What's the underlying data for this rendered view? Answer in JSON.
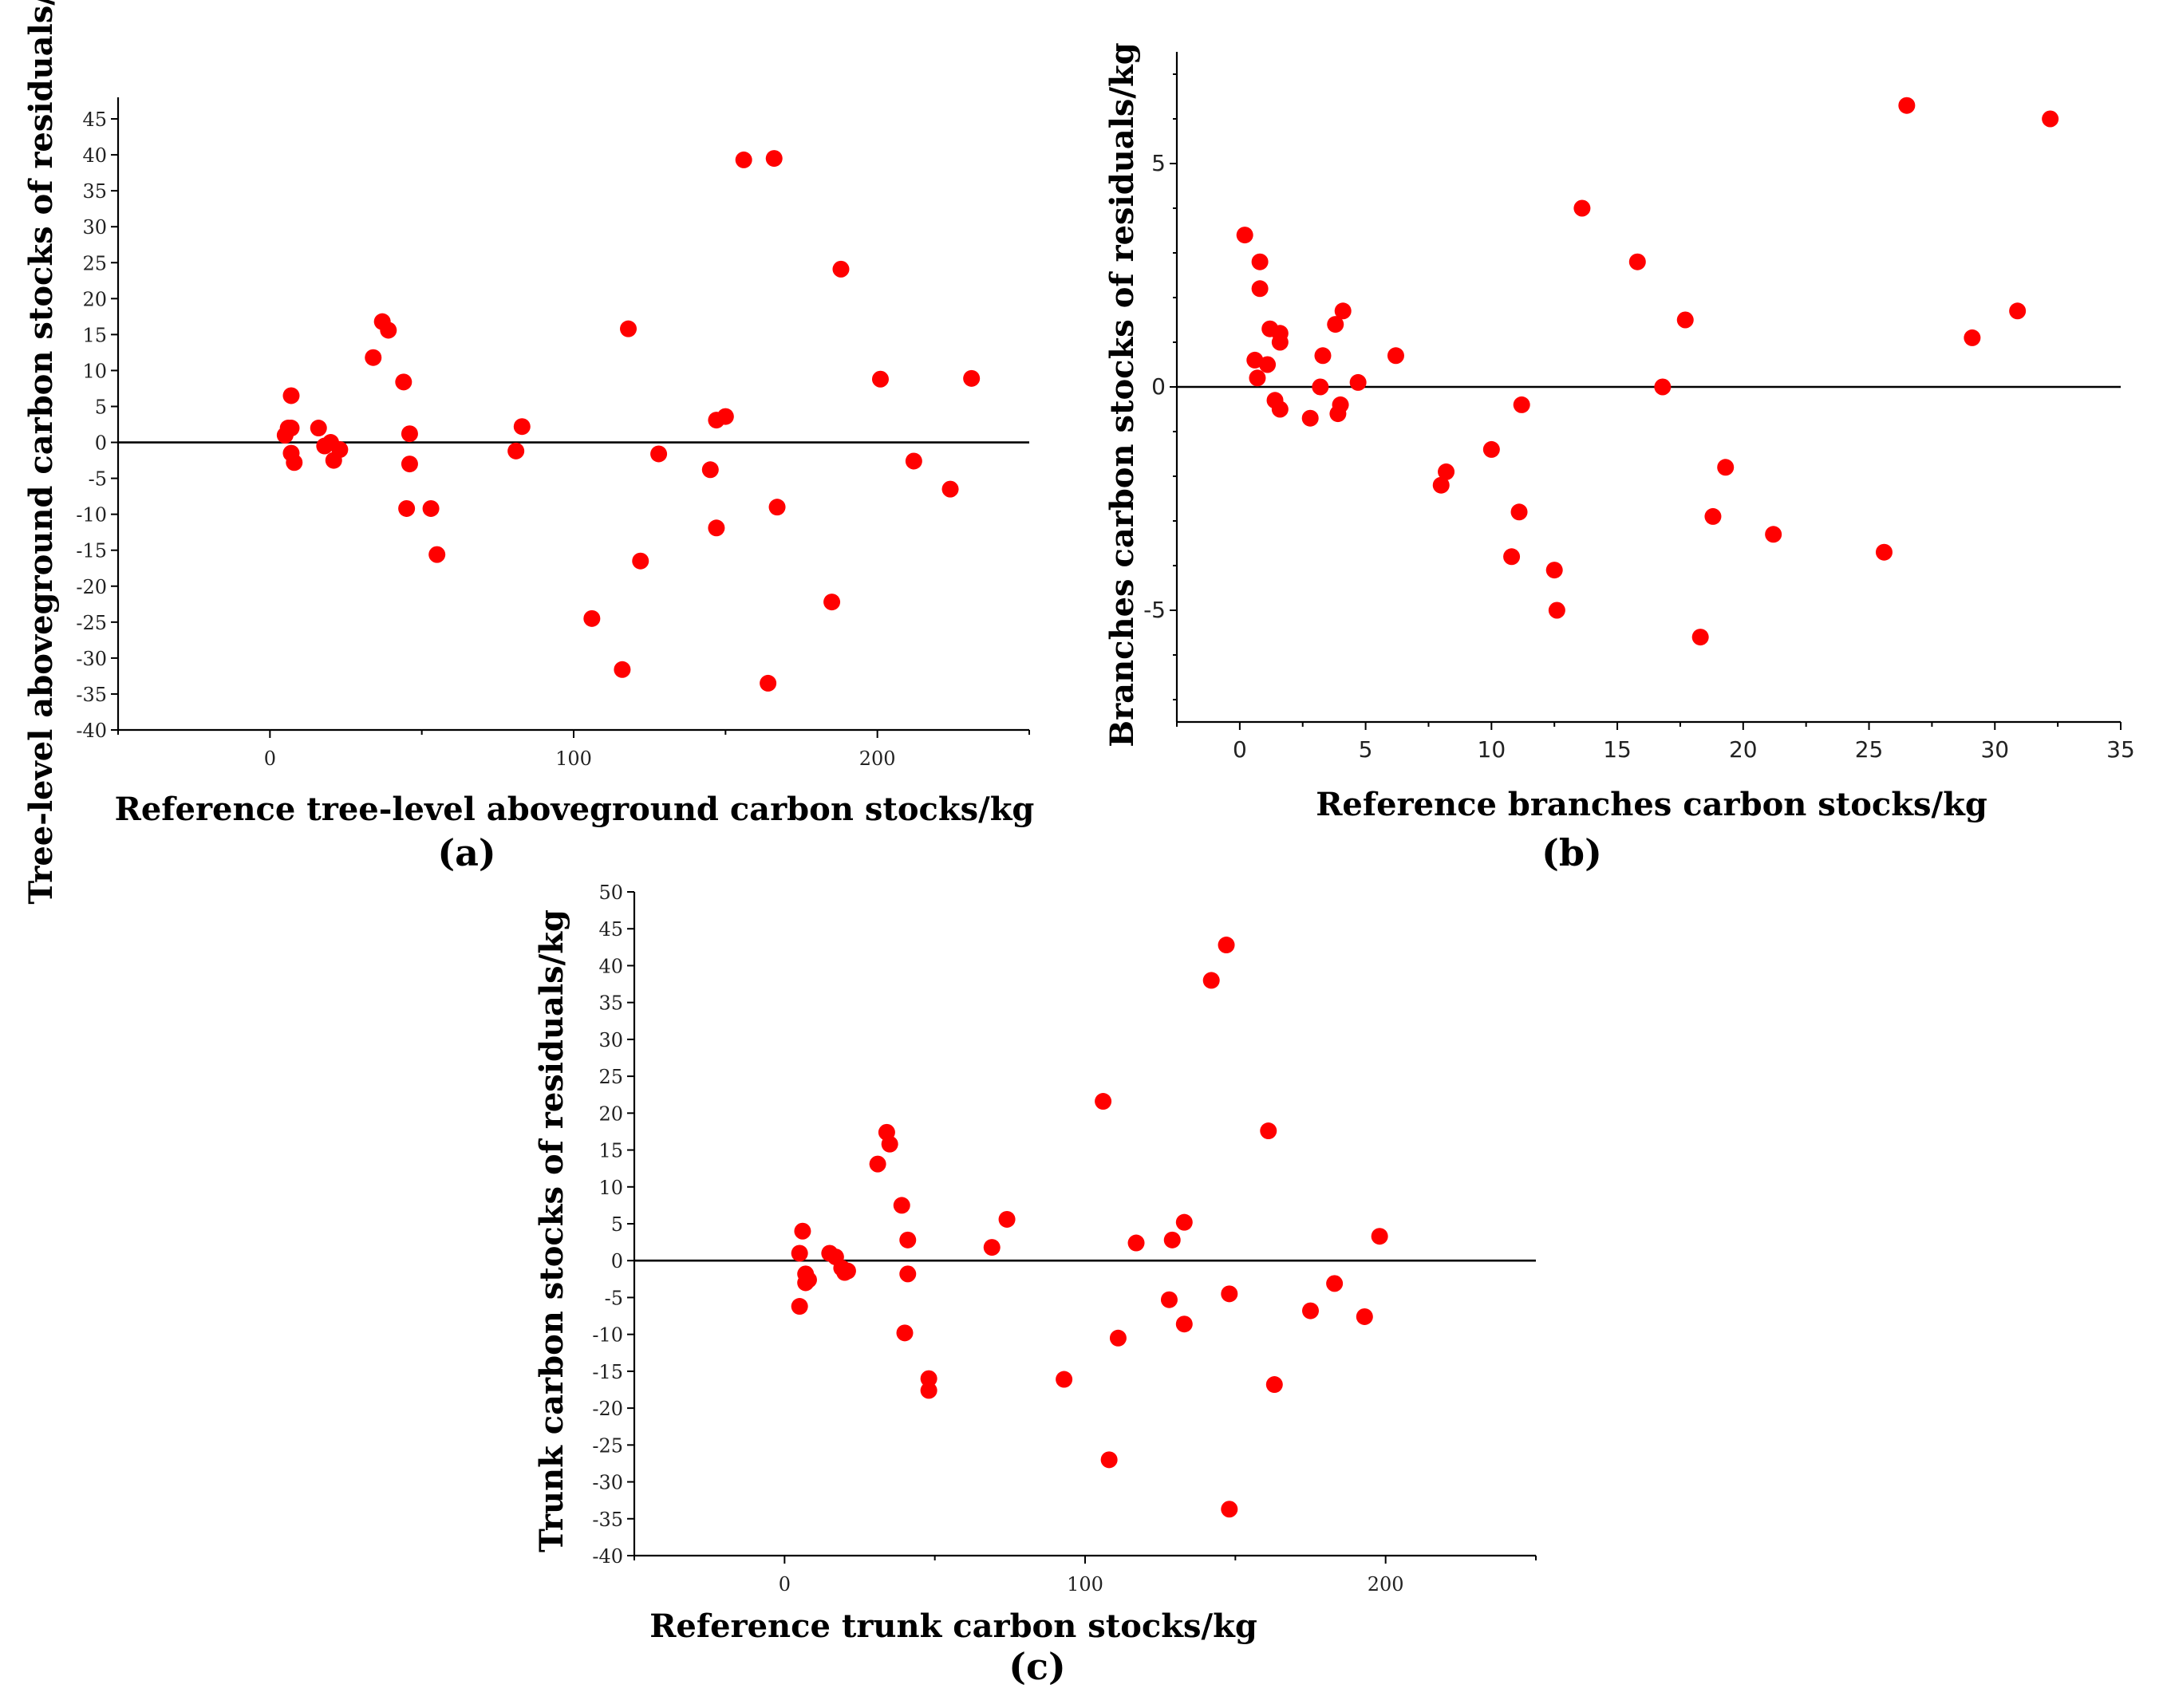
{
  "chart_data": [
    {
      "type": "scatter",
      "panel_label": "(a)",
      "xlabel": "Reference tree-level aboveground carbon stocks/kg",
      "ylabel": "Tree-level aboveground carbon stocks of residuals/kg",
      "xlim": [
        -50,
        250
      ],
      "ylim": [
        -40,
        48
      ],
      "xticks": [
        0,
        100,
        200
      ],
      "yticks": [
        -40,
        -35,
        -30,
        -25,
        -20,
        -15,
        -10,
        -5,
        0,
        5,
        10,
        15,
        20,
        25,
        30,
        35,
        40,
        45
      ],
      "reference_line_y": 0,
      "points": [
        [
          5,
          1
        ],
        [
          6,
          2
        ],
        [
          7,
          6.5
        ],
        [
          7,
          2
        ],
        [
          7,
          -1.5
        ],
        [
          8,
          -2.8
        ],
        [
          16,
          2
        ],
        [
          18,
          -0.5
        ],
        [
          20,
          0
        ],
        [
          21,
          -2.5
        ],
        [
          23,
          -1
        ],
        [
          34,
          11.8
        ],
        [
          37,
          16.8
        ],
        [
          39,
          15.6
        ],
        [
          44,
          8.4
        ],
        [
          45,
          -9.2
        ],
        [
          46,
          1.2
        ],
        [
          46,
          -3
        ],
        [
          53,
          -9.2
        ],
        [
          55,
          -15.6
        ],
        [
          81,
          -1.2
        ],
        [
          83,
          2.2
        ],
        [
          106,
          -24.5
        ],
        [
          116,
          -31.6
        ],
        [
          118,
          15.8
        ],
        [
          122,
          -16.5
        ],
        [
          128,
          -1.6
        ],
        [
          145,
          -3.8
        ],
        [
          147,
          -11.9
        ],
        [
          147,
          3.1
        ],
        [
          150,
          3.6
        ],
        [
          156,
          39.3
        ],
        [
          166,
          39.5
        ],
        [
          167,
          -9
        ],
        [
          164,
          -33.5
        ],
        [
          185,
          -22.2
        ],
        [
          188,
          24.1
        ],
        [
          201,
          8.8
        ],
        [
          212,
          -2.6
        ],
        [
          224,
          -6.5
        ],
        [
          231,
          8.9
        ]
      ]
    },
    {
      "type": "scatter",
      "panel_label": "(b)",
      "xlabel": "Reference branches carbon stocks/kg",
      "ylabel": "Branches carbon stocks of residuals/kg",
      "xlim": [
        -2.5,
        35
      ],
      "ylim": [
        -7.5,
        7.5
      ],
      "xticks": [
        0,
        5,
        10,
        15,
        20,
        25,
        30,
        35
      ],
      "yticks": [
        -5,
        0,
        5
      ],
      "reference_line_y": 0,
      "points": [
        [
          0.2,
          3.4
        ],
        [
          0.6,
          0.6
        ],
        [
          0.7,
          0.2
        ],
        [
          0.8,
          2.8
        ],
        [
          0.8,
          2.2
        ],
        [
          1.1,
          0.5
        ],
        [
          1.2,
          1.3
        ],
        [
          1.4,
          -0.3
        ],
        [
          1.6,
          1.2
        ],
        [
          1.6,
          1.0
        ],
        [
          1.6,
          -0.5
        ],
        [
          2.8,
          -0.7
        ],
        [
          3.2,
          0
        ],
        [
          3.3,
          0.7
        ],
        [
          3.8,
          1.4
        ],
        [
          3.9,
          -0.6
        ],
        [
          4.0,
          -0.4
        ],
        [
          4.1,
          1.7
        ],
        [
          4.7,
          0.1
        ],
        [
          6.2,
          0.7
        ],
        [
          8.0,
          -2.2
        ],
        [
          8.2,
          -1.9
        ],
        [
          10.0,
          -1.4
        ],
        [
          10.8,
          -3.8
        ],
        [
          11.1,
          -2.8
        ],
        [
          11.2,
          -0.4
        ],
        [
          12.5,
          -4.1
        ],
        [
          12.6,
          -5.0
        ],
        [
          13.6,
          4.0
        ],
        [
          15.8,
          2.8
        ],
        [
          16.8,
          0
        ],
        [
          17.7,
          1.5
        ],
        [
          18.3,
          -5.6
        ],
        [
          18.8,
          -2.9
        ],
        [
          19.3,
          -1.8
        ],
        [
          21.2,
          -3.3
        ],
        [
          25.6,
          -3.7
        ],
        [
          26.5,
          6.3
        ],
        [
          29.1,
          1.1
        ],
        [
          30.9,
          1.7
        ],
        [
          32.2,
          6.0
        ]
      ]
    },
    {
      "type": "scatter",
      "panel_label": "(c)",
      "xlabel": "Reference trunk carbon stocks/kg",
      "ylabel": "Trunk carbon stocks of residuals/kg",
      "xlim": [
        -50,
        250
      ],
      "ylim": [
        -40,
        50
      ],
      "xticks": [
        0,
        100,
        200
      ],
      "yticks": [
        -40,
        -35,
        -30,
        -25,
        -20,
        -15,
        -10,
        -5,
        0,
        5,
        10,
        15,
        20,
        25,
        30,
        35,
        40,
        45,
        50
      ],
      "reference_line_y": 0,
      "points": [
        [
          5,
          1
        ],
        [
          5,
          -6.2
        ],
        [
          6,
          4
        ],
        [
          7,
          -1.8
        ],
        [
          7,
          -3
        ],
        [
          8,
          -2.6
        ],
        [
          15,
          1
        ],
        [
          17,
          0.5
        ],
        [
          19,
          -1
        ],
        [
          20,
          -1.6
        ],
        [
          21,
          -1.4
        ],
        [
          31,
          13.1
        ],
        [
          34,
          17.4
        ],
        [
          35,
          15.8
        ],
        [
          39,
          7.5
        ],
        [
          40,
          -9.8
        ],
        [
          41,
          2.8
        ],
        [
          41,
          -1.8
        ],
        [
          48,
          -16
        ],
        [
          48,
          -17.6
        ],
        [
          69,
          1.8
        ],
        [
          74,
          5.6
        ],
        [
          93,
          -16.1
        ],
        [
          106,
          21.6
        ],
        [
          108,
          -27
        ],
        [
          111,
          -10.5
        ],
        [
          117,
          2.4
        ],
        [
          128,
          -5.3
        ],
        [
          129,
          2.8
        ],
        [
          133,
          5.2
        ],
        [
          133,
          -8.6
        ],
        [
          142,
          38
        ],
        [
          147,
          42.8
        ],
        [
          148,
          -33.7
        ],
        [
          148,
          -4.5
        ],
        [
          161,
          17.6
        ],
        [
          163,
          -16.8
        ],
        [
          175,
          -6.8
        ],
        [
          183,
          -3.1
        ],
        [
          193,
          -7.6
        ],
        [
          198,
          3.3
        ]
      ]
    }
  ]
}
